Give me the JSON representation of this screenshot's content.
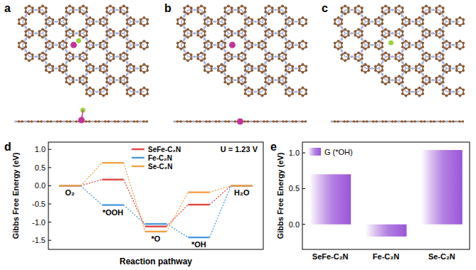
{
  "panel_labels": [
    "a",
    "b",
    "c",
    "d",
    "e"
  ],
  "chart_data": [
    {
      "type": "line",
      "x_label": "Reaction pathway",
      "y_label": "Gibbs Free Energy (eV)",
      "annotations": [
        "U = 1.23 V"
      ],
      "categories": [
        "O₂",
        "*OOH",
        "*O",
        "*OH",
        "H₂O"
      ],
      "series": [
        {
          "name": "SeFe-C₂N",
          "color": "#e0463f",
          "values": [
            0,
            0.17,
            -1.12,
            -0.52,
            0
          ]
        },
        {
          "name": "Fe-C₂N",
          "color": "#4a9be0",
          "values": [
            0,
            -0.53,
            -1.05,
            -1.42,
            0
          ]
        },
        {
          "name": "Se-C₂N",
          "color": "#f2a245",
          "values": [
            0,
            0.63,
            -1.26,
            -0.18,
            0
          ]
        }
      ],
      "ylim": [
        -1.75,
        1.2
      ],
      "yticks": [
        -1.5,
        {
          "value": -1,
          "label": "-1.0"
        },
        -0.5,
        {
          "value": 0,
          "label": "0.0"
        },
        0.5,
        {
          "value": 1,
          "label": "1.0"
        }
      ],
      "legend": "upper center",
      "line_style": "dotted"
    },
    {
      "type": "bar",
      "y_label": "Gibbs Free Energy (eV)",
      "categories": [
        "SeFe-C₂N",
        "Fe-C₂N",
        "Se-C₂N"
      ],
      "series": [
        {
          "name": "G (*OH)",
          "color": "#9a55d8",
          "values": [
            0.7,
            -0.17,
            1.04
          ]
        }
      ],
      "ylim": [
        -0.35,
        1.15
      ],
      "yticks": [
        {
          "value": 0,
          "label": "0.0"
        },
        0.5,
        {
          "value": 1,
          "label": "1.0"
        }
      ],
      "legend": "upper left"
    }
  ]
}
